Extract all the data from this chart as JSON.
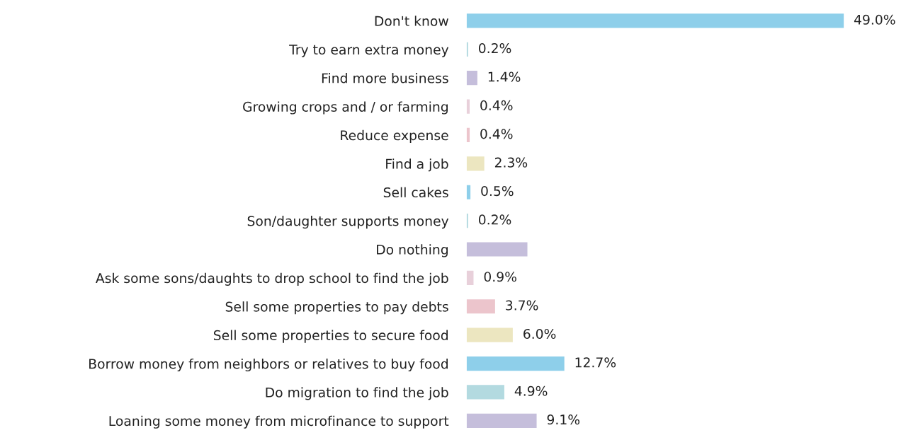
{
  "chart_data": {
    "type": "bar",
    "orientation": "horizontal",
    "categories": [
      "Don't know",
      "Try to earn extra money",
      "Find more business",
      "Growing crops and / or farming",
      "Reduce expense",
      "Find a job",
      "Sell cakes",
      "Son/daughter supports money",
      "Do nothing",
      "Ask some sons/daughts to drop school to find the job",
      "Sell some properties to pay debts",
      "Sell some properties to secure food",
      "Borrow money from neighbors or relatives to buy food",
      "Do migration to find the job",
      "Loaning some money from microfinance to support"
    ],
    "values": [
      49.0,
      0.2,
      1.4,
      0.4,
      0.4,
      2.3,
      0.5,
      0.2,
      7.9,
      0.9,
      3.7,
      6.0,
      12.7,
      4.9,
      9.1
    ],
    "value_labels": [
      "49.0%",
      "0.2%",
      "1.4%",
      "0.4%",
      "0.4%",
      "2.3%",
      "0.5%",
      "0.2%",
      null,
      "0.9%",
      "3.7%",
      "6.0%",
      "12.7%",
      "4.9%",
      "9.1%"
    ],
    "colors": [
      "#8ecfea",
      "#b3dae0",
      "#c5bedb",
      "#e8d0da",
      "#ecc5cc",
      "#ece6c0",
      "#8ecfea",
      "#b3dae0",
      "#c5bedb",
      "#e8d0da",
      "#ecc5cc",
      "#ece6c0",
      "#8ecfea",
      "#b3dae0",
      "#c5bedb"
    ],
    "grid": false
  }
}
